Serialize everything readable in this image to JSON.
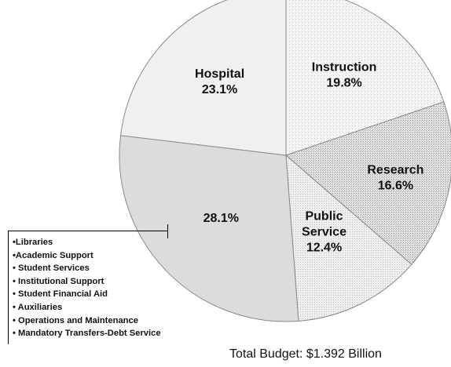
{
  "chart_data": {
    "type": "pie",
    "title": "",
    "slices": [
      {
        "label_lines": [
          "Instruction",
          "19.8%"
        ],
        "value": 19.8,
        "color": "#f2f2f2",
        "pattern": "dots-light"
      },
      {
        "label_lines": [
          "Research",
          "16.6%"
        ],
        "value": 16.6,
        "color": "#d6d6d6",
        "pattern": "dense"
      },
      {
        "label_lines": [
          "Public",
          "Service",
          "12.4%"
        ],
        "value": 12.4,
        "color": "#ececec",
        "pattern": "dots"
      },
      {
        "label_lines": [
          "28.1%"
        ],
        "value": 28.1,
        "color": "#dcdcdc",
        "pattern": "solid"
      },
      {
        "label_lines": [
          "Hospital",
          "23.1%"
        ],
        "value": 23.1,
        "color": "#f0f0f0",
        "pattern": "solid"
      }
    ],
    "other_breakdown": [
      "•Libraries",
      "•Academic Support",
      "• Student Services",
      "• Institutional Support",
      "• Student Financial Aid",
      "• Auxiliaries",
      "• Operations and Maintenance",
      "• Mandatory Transfers-Debt Service"
    ],
    "footnote": "Total Budget:  $1.392 Billion"
  }
}
